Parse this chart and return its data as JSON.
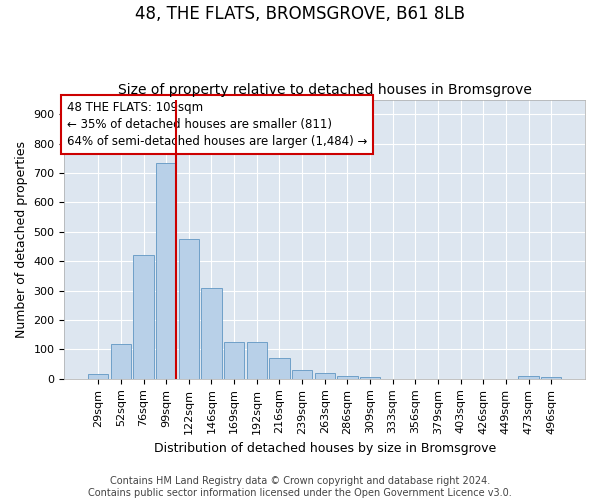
{
  "title": "48, THE FLATS, BROMSGROVE, B61 8LB",
  "subtitle": "Size of property relative to detached houses in Bromsgrove",
  "xlabel": "Distribution of detached houses by size in Bromsgrove",
  "ylabel": "Number of detached properties",
  "categories": [
    "29sqm",
    "52sqm",
    "76sqm",
    "99sqm",
    "122sqm",
    "146sqm",
    "169sqm",
    "192sqm",
    "216sqm",
    "239sqm",
    "263sqm",
    "286sqm",
    "309sqm",
    "333sqm",
    "356sqm",
    "379sqm",
    "403sqm",
    "426sqm",
    "449sqm",
    "473sqm",
    "496sqm"
  ],
  "values": [
    15,
    120,
    420,
    735,
    475,
    310,
    125,
    125,
    70,
    30,
    20,
    10,
    5,
    0,
    0,
    0,
    0,
    0,
    0,
    8,
    5
  ],
  "bar_color": "#b8d0e8",
  "bar_edge_color": "#6fa0c8",
  "marker_color": "#cc0000",
  "annotation_line1": "48 THE FLATS: 109sqm",
  "annotation_line2": "← 35% of detached houses are smaller (811)",
  "annotation_line3": "64% of semi-detached houses are larger (1,484) →",
  "annotation_box_color": "#ffffff",
  "annotation_box_edge": "#cc0000",
  "ylim": [
    0,
    950
  ],
  "yticks": [
    0,
    100,
    200,
    300,
    400,
    500,
    600,
    700,
    800,
    900
  ],
  "background_color": "#dde6f0",
  "footer_line1": "Contains HM Land Registry data © Crown copyright and database right 2024.",
  "footer_line2": "Contains public sector information licensed under the Open Government Licence v3.0.",
  "title_fontsize": 12,
  "subtitle_fontsize": 10,
  "xlabel_fontsize": 9,
  "ylabel_fontsize": 9,
  "tick_fontsize": 8,
  "annotation_fontsize": 8.5,
  "footer_fontsize": 7
}
